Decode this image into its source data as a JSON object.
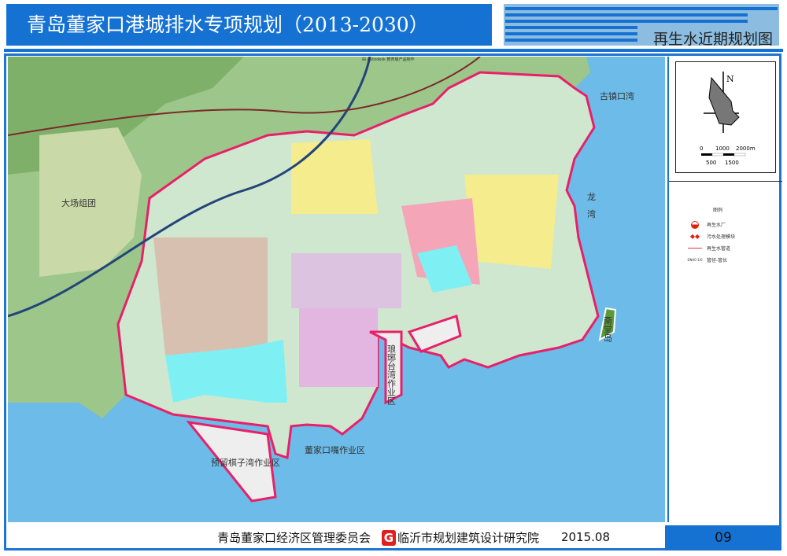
{
  "header": {
    "title": "青岛董家口港城排水专项规划（2013-2030）",
    "subtitle": "再生水近期规划图"
  },
  "watermark": "由 Autodesk 教育版产品制作",
  "map": {
    "labels": {
      "guzhenkou": "古镇口湾",
      "longwan_1": "龙",
      "longwan_2": "湾",
      "zhaitang": "斋堂岛",
      "dachang": "大场组团",
      "langya": "琅琊台湾作业区",
      "dongjiakou": "董家口嘴作业区",
      "qizi": "预留棋子湾作业区"
    },
    "colors": {
      "sea": "#6cbbe8",
      "land": "#9cc68a",
      "boundary": "#e8206a",
      "residential": "#f5ec8e",
      "industrial": "#dcc4e0",
      "commercial": "#f4a6b8",
      "water_body": "#7ef0f4"
    }
  },
  "north_arrow": {
    "label": "N",
    "scale_top": [
      "0",
      "1000",
      "2000m"
    ],
    "scale_bottom": [
      "500",
      "1500"
    ]
  },
  "legend": {
    "title": "图例",
    "items": [
      {
        "icon": "reclaimed-water-plant-icon",
        "label": "再生水厂"
      },
      {
        "icon": "sewage-module-icon",
        "label": "污水处理模块"
      },
      {
        "icon": "pipe-line-icon",
        "label": "再生水管道"
      },
      {
        "icon": "pipe-spec-text",
        "symbol": "DN00-1/0",
        "label": "管径-管长"
      }
    ]
  },
  "footer": {
    "client": "青岛董家口经济区管理委员会",
    "logo_letter": "G",
    "institute": "临沂市规划建筑设计研究院",
    "date": "2015.08",
    "page": "09"
  }
}
